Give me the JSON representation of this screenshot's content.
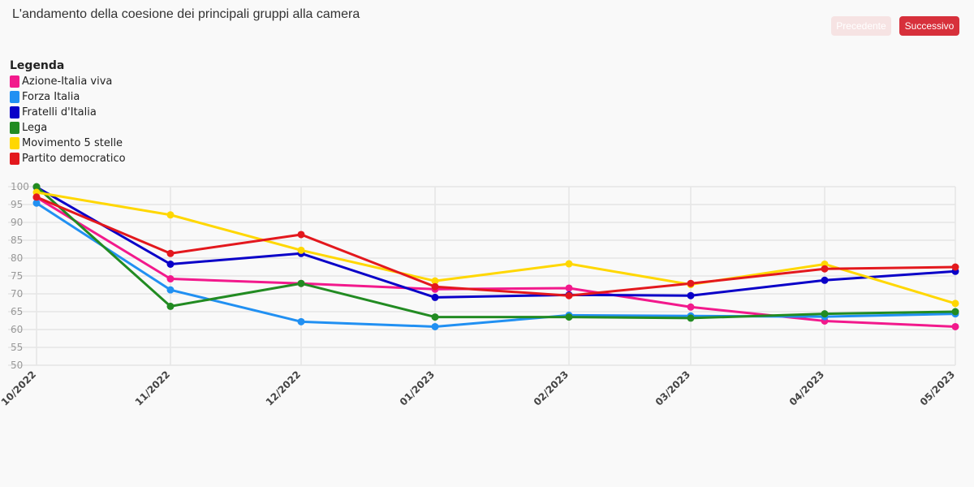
{
  "title": "L'andamento della coesione dei principali gruppi alla camera",
  "nav": {
    "prev_label": "Precedente",
    "next_label": "Successivo"
  },
  "legend": {
    "title": "Legenda",
    "placement": "top-left"
  },
  "colors": {
    "background": "#f9f9f9",
    "grid": "#e6e6e6",
    "button_active": "#d7303b",
    "button_disabled": "#f6e3e3"
  },
  "chart_data": {
    "type": "line",
    "categories": [
      "10/2022",
      "11/2022",
      "12/2022",
      "01/2023",
      "02/2023",
      "03/2023",
      "04/2023",
      "05/2023"
    ],
    "ylim": [
      50,
      100
    ],
    "yticks": [
      100,
      95,
      90,
      85,
      80,
      75,
      70,
      65,
      60,
      55,
      50
    ],
    "grid": true,
    "series": [
      {
        "name": "Azione-Italia viva",
        "color": "#f2198c",
        "values": [
          97,
          74.2,
          72.9,
          71.3,
          71.6,
          66.3,
          62.4,
          60.8
        ]
      },
      {
        "name": "Forza Italia",
        "color": "#2190f2",
        "values": [
          95.4,
          71.1,
          62.2,
          60.8,
          64,
          63.8,
          63.6,
          64.4
        ]
      },
      {
        "name": "Fratelli d'Italia",
        "color": "#0a00c8",
        "values": [
          99.9,
          78.3,
          81.3,
          69,
          69.7,
          69.5,
          73.8,
          76.3
        ]
      },
      {
        "name": "Lega",
        "color": "#228b22",
        "values": [
          100,
          66.5,
          72.9,
          63.5,
          63.5,
          63.2,
          64.4,
          65
        ]
      },
      {
        "name": "Movimento 5 stelle",
        "color": "#ffd700",
        "values": [
          98.4,
          92.1,
          82.2,
          73.6,
          78.4,
          72.6,
          78.3,
          67.3
        ]
      },
      {
        "name": "Partito democratico",
        "color": "#e3181d",
        "values": [
          97.1,
          81.3,
          86.6,
          72,
          69.5,
          72.9,
          77,
          77.5
        ]
      }
    ]
  }
}
